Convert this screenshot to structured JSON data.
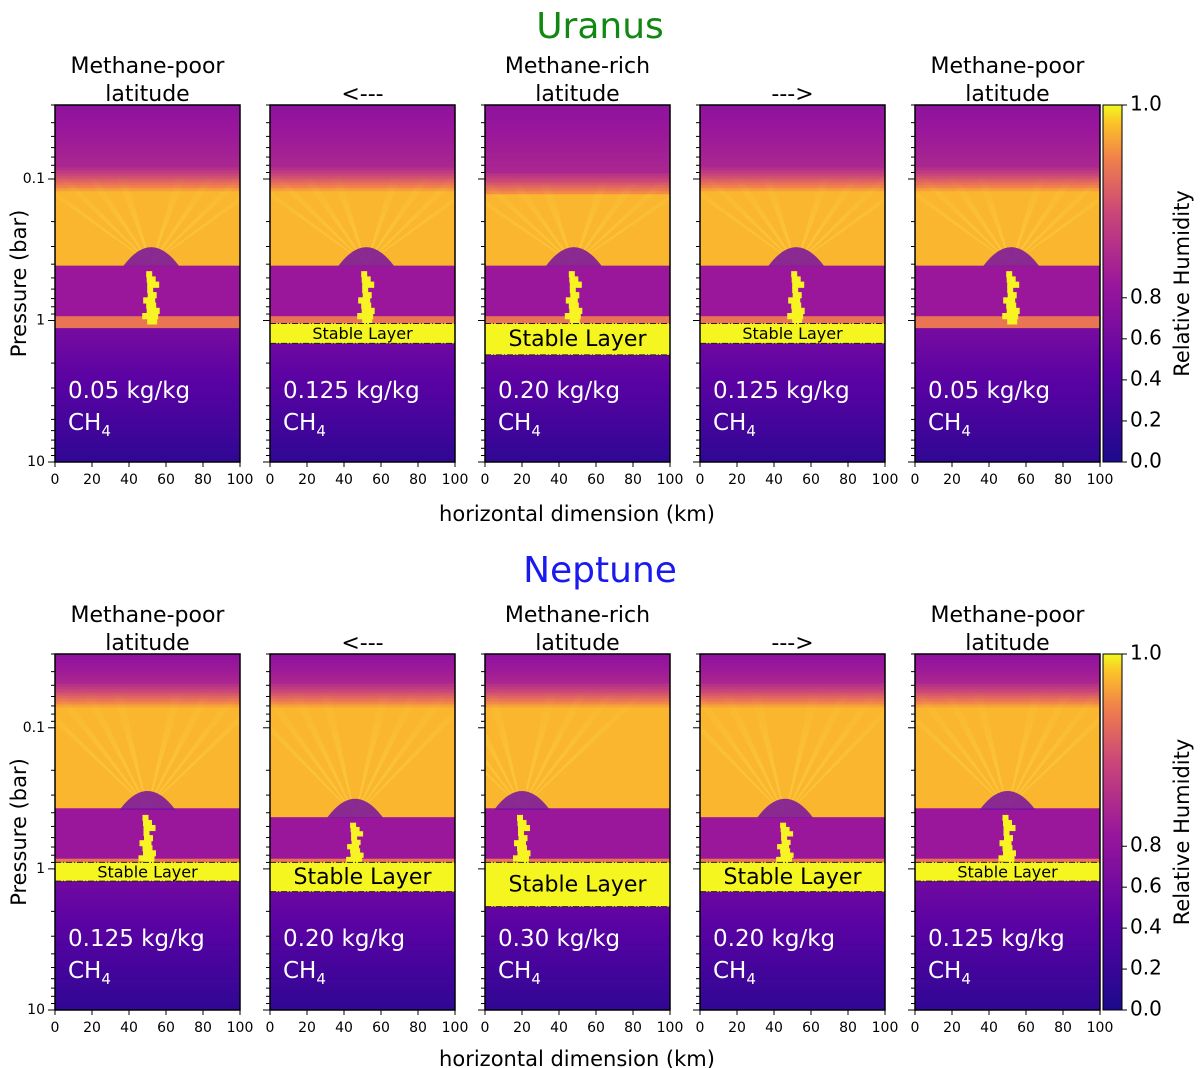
{
  "chart_data": [
    {
      "type": "heatmap",
      "planet": "Uranus",
      "planet_color": "#118811",
      "xlabel": "horizontal dimension (km)",
      "ylabel": "Pressure (bar)",
      "colorbar_label": "Relative Humidity",
      "xlim": [
        0,
        100
      ],
      "ylim": [
        10,
        0.03
      ],
      "y_scale": "log",
      "x_ticks": [
        "0",
        "20",
        "40",
        "60",
        "80",
        "100"
      ],
      "y_ticks": [
        {
          "value": 0.1,
          "label": "0.1"
        },
        {
          "value": 1,
          "label": "1"
        },
        {
          "value": 10,
          "label": "10"
        }
      ],
      "colorbar_ticks": [
        "0.0",
        "0.2",
        "0.4",
        "0.6",
        "0.8",
        "1.0"
      ],
      "panels": [
        {
          "title": [
            "Methane-poor",
            "latitude"
          ],
          "ch4_value": "0.05 kg/kg",
          "ch4_species": "CH",
          "ch4_sub": "4",
          "stable_layer": null,
          "cloud_base_bar": 1.0,
          "upper_band_bar": [
            0.12,
            0.4
          ],
          "plume_center_km": 52
        },
        {
          "title": [
            "<---"
          ],
          "ch4_value": "0.125 kg/kg",
          "ch4_species": "CH",
          "ch4_sub": "4",
          "stable_layer": {
            "label": "Stable Layer",
            "top_bar": 1.05,
            "bottom_bar": 1.45
          },
          "cloud_base_bar": 1.0,
          "upper_band_bar": [
            0.12,
            0.4
          ],
          "plume_center_km": 52
        },
        {
          "title": [
            "Methane-rich",
            "latitude"
          ],
          "ch4_value": "0.20 kg/kg",
          "ch4_species": "CH",
          "ch4_sub": "4",
          "stable_layer": {
            "label": "Stable Layer",
            "top_bar": 1.05,
            "bottom_bar": 1.75
          },
          "cloud_base_bar": 1.0,
          "upper_band_bar": [
            0.13,
            0.4
          ],
          "plume_center_km": 48
        },
        {
          "title": [
            "--->"
          ],
          "ch4_value": "0.125 kg/kg",
          "ch4_species": "CH",
          "ch4_sub": "4",
          "stable_layer": {
            "label": "Stable Layer",
            "top_bar": 1.05,
            "bottom_bar": 1.45
          },
          "cloud_base_bar": 1.0,
          "upper_band_bar": [
            0.12,
            0.4
          ],
          "plume_center_km": 52
        },
        {
          "title": [
            "Methane-poor",
            "latitude"
          ],
          "ch4_value": "0.05 kg/kg",
          "ch4_species": "CH",
          "ch4_sub": "4",
          "stable_layer": null,
          "cloud_base_bar": 1.0,
          "upper_band_bar": [
            0.12,
            0.4
          ],
          "plume_center_km": 52
        }
      ]
    },
    {
      "type": "heatmap",
      "planet": "Neptune",
      "planet_color": "#1a1aee",
      "xlabel": "horizontal dimension (km)",
      "ylabel": "Pressure (bar)",
      "colorbar_label": "Relative Humidity",
      "xlim": [
        0,
        100
      ],
      "ylim": [
        10,
        0.03
      ],
      "y_scale": "log",
      "x_ticks": [
        "0",
        "20",
        "40",
        "60",
        "80",
        "100"
      ],
      "y_ticks": [
        {
          "value": 0.1,
          "label": "0.1"
        },
        {
          "value": 1,
          "label": "1"
        },
        {
          "value": 10,
          "label": "10"
        }
      ],
      "colorbar_ticks": [
        "0.0",
        "0.2",
        "0.4",
        "0.6",
        "0.8",
        "1.0"
      ],
      "panels": [
        {
          "title": [
            "Methane-poor",
            "latitude"
          ],
          "ch4_value": "0.125 kg/kg",
          "ch4_species": "CH",
          "ch4_sub": "4",
          "stable_layer": {
            "label": "Stable Layer",
            "top_bar": 0.9,
            "bottom_bar": 1.22
          },
          "cloud_base_bar": 0.9,
          "upper_band_bar": [
            0.07,
            0.37
          ],
          "plume_center_km": 50
        },
        {
          "title": [
            "<---"
          ],
          "ch4_value": "0.20 kg/kg",
          "ch4_species": "CH",
          "ch4_sub": "4",
          "stable_layer": {
            "label": "Stable Layer",
            "top_bar": 0.9,
            "bottom_bar": 1.45
          },
          "cloud_base_bar": 0.9,
          "upper_band_bar": [
            0.07,
            0.42
          ],
          "plume_center_km": 46
        },
        {
          "title": [
            "Methane-rich",
            "latitude"
          ],
          "ch4_value": "0.30 kg/kg",
          "ch4_species": "CH",
          "ch4_sub": "4",
          "stable_layer": {
            "label": "Stable Layer",
            "top_bar": 0.9,
            "bottom_bar": 1.85
          },
          "cloud_base_bar": 0.9,
          "upper_band_bar": [
            0.07,
            0.37
          ],
          "plume_center_km": 20
        },
        {
          "title": [
            "--->"
          ],
          "ch4_value": "0.20 kg/kg",
          "ch4_species": "CH",
          "ch4_sub": "4",
          "stable_layer": {
            "label": "Stable Layer",
            "top_bar": 0.9,
            "bottom_bar": 1.45
          },
          "cloud_base_bar": 0.9,
          "upper_band_bar": [
            0.07,
            0.42
          ],
          "plume_center_km": 46
        },
        {
          "title": [
            "Methane-poor",
            "latitude"
          ],
          "ch4_value": "0.125 kg/kg",
          "ch4_species": "CH",
          "ch4_sub": "4",
          "stable_layer": {
            "label": "Stable Layer",
            "top_bar": 0.9,
            "bottom_bar": 1.22
          },
          "cloud_base_bar": 0.9,
          "upper_band_bar": [
            0.07,
            0.37
          ],
          "plume_center_km": 50
        }
      ]
    }
  ]
}
